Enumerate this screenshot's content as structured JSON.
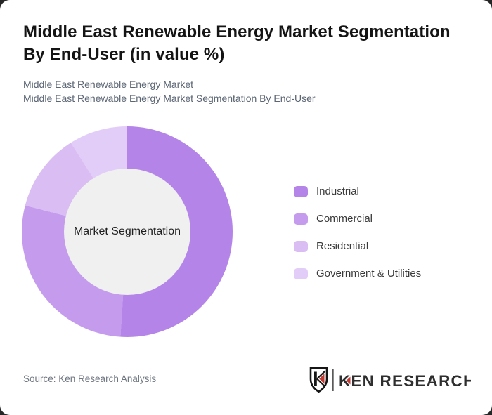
{
  "title": {
    "line1": "Middle East Renewable Energy Market Segmentation",
    "line2": "By End-User (in value %)"
  },
  "subtitle": {
    "line1": "Middle East Renewable Energy Market",
    "line2": "Middle East Renewable Energy Market Segmentation By End-User"
  },
  "chart_data": {
    "type": "pie",
    "variant": "donut",
    "title": "Middle East Renewable Energy Market Segmentation By End-User (in value %)",
    "center_label": "Market Segmentation",
    "categories": [
      "Industrial",
      "Commercial",
      "Residential",
      "Government & Utilities"
    ],
    "values": [
      51,
      28,
      12,
      9
    ],
    "colors": [
      "#b484e8",
      "#c59ced",
      "#d9bdf3",
      "#e2cdf8"
    ],
    "start_angle_deg": 0,
    "direction": "clockwise",
    "legend_position": "right",
    "inner_radius_ratio": 0.6,
    "hole_color": "#f0f0f0"
  },
  "footer": {
    "source_label": "Source: Ken Research Analysis",
    "logo_text": "KEN RESEARCH"
  },
  "colors": {
    "accent_red": "#c23b33",
    "card_bg": "#ffffff",
    "backdrop": "#262626",
    "title_text": "#141414",
    "subtitle_text": "#5c6674"
  }
}
